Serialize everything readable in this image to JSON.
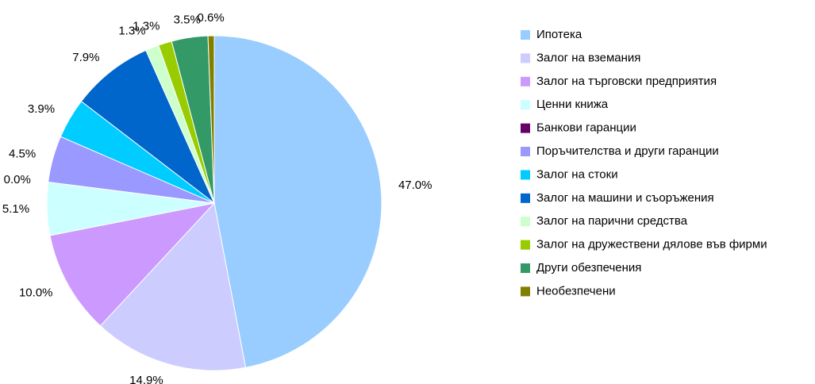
{
  "chart_data": {
    "type": "pie",
    "categories": [
      "Ипотека",
      "Залог на вземания",
      "Залог на търговски предприятия",
      "Ценни книжа",
      "Банкови гаранции",
      "Поръчителства и други гаранции",
      "Залог на стоки",
      "Залог на машини и съоръжения",
      "Залог на парични средства",
      "Залог на дружествени дялове във фирми",
      "Други обезпечения",
      "Необезпечени"
    ],
    "values": [
      47.0,
      14.9,
      10.0,
      5.1,
      0.0,
      4.5,
      3.9,
      7.9,
      1.3,
      1.3,
      3.5,
      0.6
    ],
    "value_labels": [
      "47.0%",
      "14.9%",
      "10.0%",
      "5.1%",
      "0.0%",
      "4.5%",
      "3.9%",
      "7.9%",
      "1.3%",
      "1.3%",
      "3.5%",
      "0.6%"
    ],
    "colors": [
      "#99ccff",
      "#ccccff",
      "#cc99ff",
      "#ccffff",
      "#660066",
      "#9999ff",
      "#00ccff",
      "#0066cc",
      "#ccffcc",
      "#99cc00",
      "#339966",
      "#808000"
    ],
    "legend": "right"
  }
}
